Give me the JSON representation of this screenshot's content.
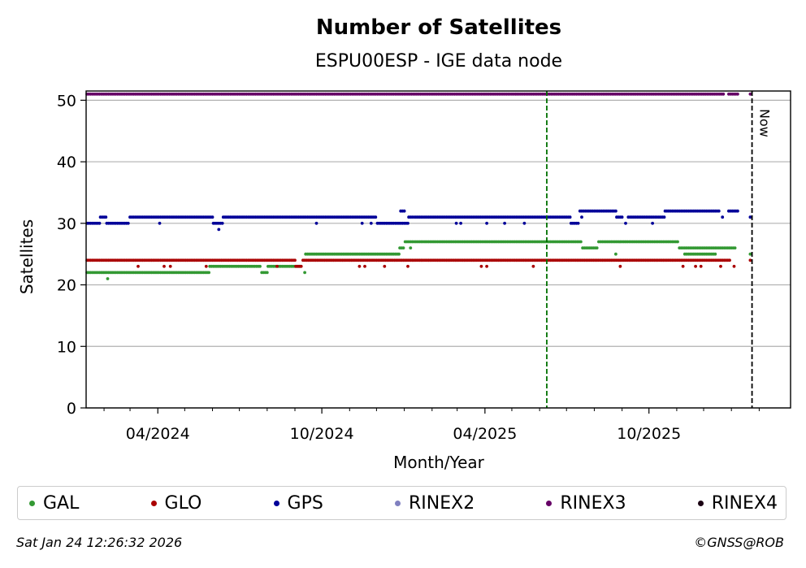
{
  "chart_data": {
    "type": "scatter",
    "title": "Number of Satellites",
    "subtitle": "ESPU00ESP - IGE data node",
    "xlabel": "Month/Year",
    "ylabel": "Satellites",
    "ylim": [
      0,
      51.5
    ],
    "xlim": [
      "2024-01-12",
      "2026-03-08"
    ],
    "y_ticks": [
      0,
      10,
      20,
      30,
      40,
      50
    ],
    "x_ticks": [
      {
        "date": "2024-04-01",
        "label": "04/2024"
      },
      {
        "date": "2024-10-01",
        "label": "10/2024"
      },
      {
        "date": "2025-04-01",
        "label": "04/2025"
      },
      {
        "date": "2025-10-01",
        "label": "10/2025"
      }
    ],
    "x_minor_ticks": [
      "2024-02-01",
      "2024-03-01",
      "2024-05-01",
      "2024-06-01",
      "2024-07-01",
      "2024-08-01",
      "2024-09-01",
      "2024-11-01",
      "2024-12-01",
      "2025-01-01",
      "2025-02-01",
      "2025-03-01",
      "2025-05-01",
      "2025-06-01",
      "2025-07-01",
      "2025-08-01",
      "2025-09-01",
      "2025-11-01",
      "2025-12-01",
      "2026-01-01",
      "2026-02-01"
    ],
    "grid": "horizontal",
    "vlines": [
      {
        "date": "2025-06-09",
        "color": "#007000",
        "style": "dashed"
      },
      {
        "date": "2026-01-24",
        "color": "#000000",
        "style": "dashed",
        "label": "Now"
      }
    ],
    "series": [
      {
        "name": "GAL",
        "color": "#339933",
        "segments": [
          {
            "from": "2024-01-13",
            "to": "2024-05-28",
            "value": 22
          },
          {
            "from": "2024-05-29",
            "to": "2024-07-25",
            "value": 23
          },
          {
            "from": "2024-07-26",
            "to": "2024-08-01",
            "value": 22
          },
          {
            "from": "2024-08-02",
            "to": "2024-09-08",
            "value": 23
          },
          {
            "from": "2024-09-13",
            "to": "2024-12-26",
            "value": 25
          },
          {
            "from": "2024-12-27",
            "to": "2025-01-01",
            "value": 26
          },
          {
            "from": "2025-01-02",
            "to": "2025-07-18",
            "value": 27
          },
          {
            "from": "2025-07-19",
            "to": "2025-08-05",
            "value": 26
          },
          {
            "from": "2025-08-06",
            "to": "2025-11-03",
            "value": 27
          },
          {
            "from": "2025-11-04",
            "to": "2026-01-05",
            "value": 26
          },
          {
            "from": "2025-11-10",
            "to": "2025-12-15",
            "value": 25
          }
        ],
        "points": [
          {
            "date": "2024-02-05",
            "value": 21
          },
          {
            "date": "2024-09-12",
            "value": 22
          },
          {
            "date": "2025-01-08",
            "value": 26
          },
          {
            "date": "2025-08-25",
            "value": 25
          },
          {
            "date": "2026-01-22",
            "value": 25
          }
        ]
      },
      {
        "name": "GLO",
        "color": "#aa0000",
        "segments": [
          {
            "from": "2024-01-13",
            "to": "2024-09-01",
            "value": 24
          },
          {
            "from": "2024-09-02",
            "to": "2024-09-09",
            "value": 23
          },
          {
            "from": "2024-09-10",
            "to": "2025-12-31",
            "value": 24
          }
        ],
        "points": [
          {
            "date": "2024-03-10",
            "value": 23
          },
          {
            "date": "2024-04-08",
            "value": 23
          },
          {
            "date": "2024-04-15",
            "value": 23
          },
          {
            "date": "2024-05-25",
            "value": 23
          },
          {
            "date": "2024-08-12",
            "value": 23
          },
          {
            "date": "2024-11-12",
            "value": 23
          },
          {
            "date": "2024-11-18",
            "value": 23
          },
          {
            "date": "2024-12-10",
            "value": 23
          },
          {
            "date": "2025-01-05",
            "value": 23
          },
          {
            "date": "2025-03-28",
            "value": 23
          },
          {
            "date": "2025-04-03",
            "value": 23
          },
          {
            "date": "2025-05-25",
            "value": 23
          },
          {
            "date": "2025-08-30",
            "value": 23
          },
          {
            "date": "2025-11-08",
            "value": 23
          },
          {
            "date": "2025-11-22",
            "value": 23
          },
          {
            "date": "2025-11-28",
            "value": 23
          },
          {
            "date": "2025-12-20",
            "value": 23
          },
          {
            "date": "2026-01-04",
            "value": 23
          },
          {
            "date": "2026-01-22",
            "value": 24
          }
        ]
      },
      {
        "name": "GPS",
        "color": "#000099",
        "segments": [
          {
            "from": "2024-01-13",
            "to": "2024-01-27",
            "value": 30
          },
          {
            "from": "2024-01-28",
            "to": "2024-02-03",
            "value": 31
          },
          {
            "from": "2024-02-04",
            "to": "2024-02-28",
            "value": 30
          },
          {
            "from": "2024-03-01",
            "to": "2024-06-01",
            "value": 31
          },
          {
            "from": "2024-06-02",
            "to": "2024-06-12",
            "value": 30
          },
          {
            "from": "2024-06-13",
            "to": "2024-12-01",
            "value": 31
          },
          {
            "from": "2024-12-02",
            "to": "2025-01-05",
            "value": 30
          },
          {
            "from": "2024-12-28",
            "to": "2025-01-02",
            "value": 32
          },
          {
            "from": "2025-01-06",
            "to": "2025-07-05",
            "value": 31
          },
          {
            "from": "2025-07-06",
            "to": "2025-07-15",
            "value": 30
          },
          {
            "from": "2025-07-16",
            "to": "2025-08-25",
            "value": 32
          },
          {
            "from": "2025-08-26",
            "to": "2025-09-02",
            "value": 31
          },
          {
            "from": "2025-09-08",
            "to": "2025-10-18",
            "value": 31
          },
          {
            "from": "2025-10-19",
            "to": "2025-12-18",
            "value": 32
          },
          {
            "from": "2025-12-29",
            "to": "2026-01-08",
            "value": 32
          }
        ],
        "points": [
          {
            "date": "2024-04-03",
            "value": 30
          },
          {
            "date": "2024-06-08",
            "value": 29
          },
          {
            "date": "2024-09-25",
            "value": 30
          },
          {
            "date": "2024-11-15",
            "value": 30
          },
          {
            "date": "2024-11-25",
            "value": 30
          },
          {
            "date": "2025-02-28",
            "value": 30
          },
          {
            "date": "2025-03-05",
            "value": 30
          },
          {
            "date": "2025-04-03",
            "value": 30
          },
          {
            "date": "2025-04-23",
            "value": 30
          },
          {
            "date": "2025-05-15",
            "value": 30
          },
          {
            "date": "2025-07-18",
            "value": 31
          },
          {
            "date": "2025-09-05",
            "value": 30
          },
          {
            "date": "2025-10-05",
            "value": 30
          },
          {
            "date": "2025-12-22",
            "value": 31
          },
          {
            "date": "2026-01-22",
            "value": 31
          }
        ]
      },
      {
        "name": "RINEX2",
        "color": "#8080c0",
        "segments": [],
        "points": []
      },
      {
        "name": "RINEX3",
        "color": "#660066",
        "segments": [
          {
            "from": "2024-01-13",
            "to": "2025-12-24",
            "value": 51
          },
          {
            "from": "2025-12-29",
            "to": "2026-01-09",
            "value": 51
          }
        ],
        "points": [
          {
            "date": "2026-01-22",
            "value": 51
          }
        ]
      },
      {
        "name": "RINEX4",
        "color": "#1a0013",
        "segments": [],
        "points": []
      }
    ]
  },
  "footer": {
    "timestamp": "Sat Jan 24 12:26:32 2026",
    "credit": "©GNSS@ROB"
  }
}
